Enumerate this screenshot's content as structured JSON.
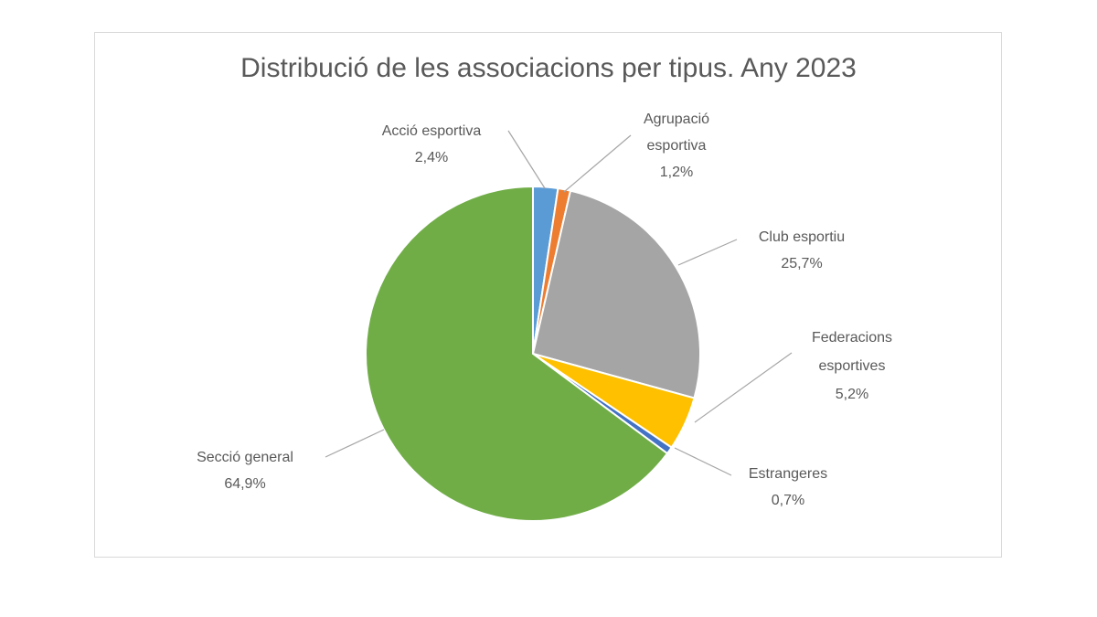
{
  "chart_data": {
    "type": "pie",
    "title": "Distribució de les associacions per tipus. Any 2023",
    "start_angle": "12 o'clock, clockwise",
    "legend": "none (data labels with leader lines)",
    "slices": [
      {
        "label": "Acció esportiva",
        "value": 2.4,
        "display": "2,4%",
        "color": "#5B9BD5"
      },
      {
        "label": "Agrupació esportiva",
        "value": 1.2,
        "display": "1,2%",
        "color": "#ED7D31"
      },
      {
        "label": "Club esportiu",
        "value": 25.7,
        "display": "25,7%",
        "color": "#A5A5A5"
      },
      {
        "label": "Federacions esportives",
        "value": 5.2,
        "display": "5,2%",
        "color": "#FFC000"
      },
      {
        "label": "Estrangeres",
        "value": 0.7,
        "display": "0,7%",
        "color": "#4472C4"
      },
      {
        "label": "Secció general",
        "value": 64.9,
        "display": "64,9%",
        "color": "#70AD47"
      }
    ]
  }
}
